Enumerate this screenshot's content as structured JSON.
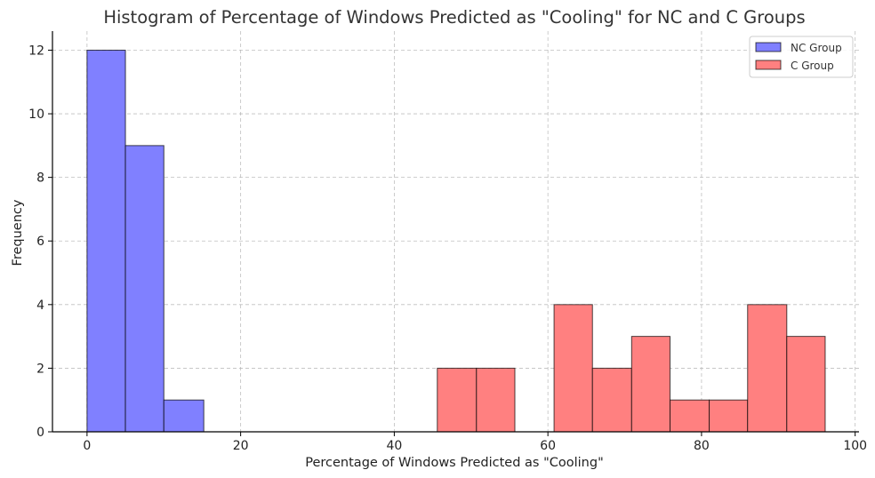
{
  "chart_data": {
    "type": "bar",
    "title": "Histogram of Percentage of Windows Predicted as \"Cooling\" for NC and C Groups",
    "xlabel": "Percentage of Windows Predicted as \"Cooling\"",
    "ylabel": "Frequency",
    "xlim": [
      -4.5,
      100.5
    ],
    "ylim": [
      0,
      12.6
    ],
    "xticks": [
      0,
      20,
      40,
      60,
      80,
      100
    ],
    "yticks": [
      0,
      2,
      4,
      6,
      8,
      10,
      12
    ],
    "grid": true,
    "legend_position": "top-right",
    "series": [
      {
        "name": "NC Group",
        "color": "#8080ff",
        "bins": [
          {
            "x0": 0,
            "x1": 5,
            "count": 12
          },
          {
            "x0": 5,
            "x1": 10,
            "count": 9
          },
          {
            "x0": 10,
            "x1": 15.2,
            "count": 1
          }
        ]
      },
      {
        "name": "C Group",
        "color": "#ff8080",
        "bins": [
          {
            "x0": 45.6,
            "x1": 50.7,
            "count": 2
          },
          {
            "x0": 50.7,
            "x1": 55.7,
            "count": 2
          },
          {
            "x0": 55.7,
            "x1": 60.8,
            "count": 0
          },
          {
            "x0": 60.8,
            "x1": 65.8,
            "count": 4
          },
          {
            "x0": 65.8,
            "x1": 70.9,
            "count": 2
          },
          {
            "x0": 70.9,
            "x1": 75.9,
            "count": 3
          },
          {
            "x0": 75.9,
            "x1": 81.0,
            "count": 1
          },
          {
            "x0": 81.0,
            "x1": 86.0,
            "count": 1
          },
          {
            "x0": 86.0,
            "x1": 91.1,
            "count": 4
          },
          {
            "x0": 91.1,
            "x1": 96.1,
            "count": 3
          }
        ]
      }
    ]
  }
}
